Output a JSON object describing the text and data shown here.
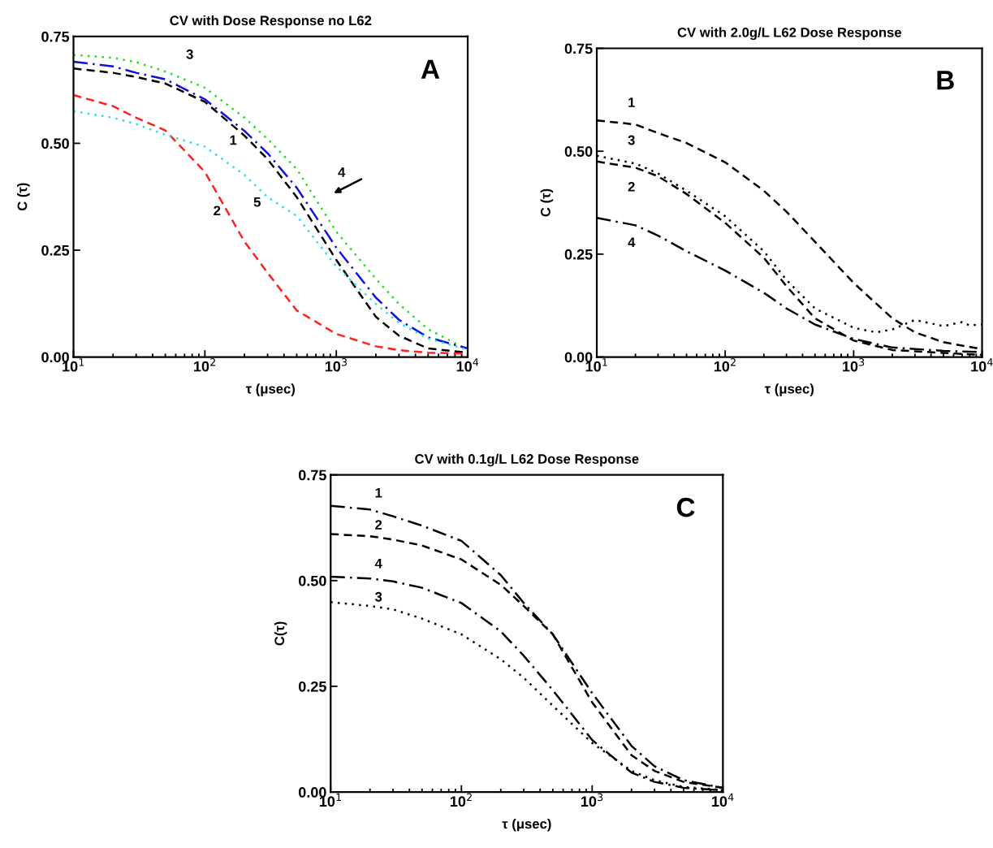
{
  "chart_data": [
    {
      "type": "line",
      "title": "CV with Dose Response no L62",
      "xlabel": "τ (μsec)",
      "ylabel": "C (τ)",
      "log": "x",
      "grid": false,
      "x": [
        10,
        20,
        30,
        50,
        100,
        200,
        300,
        500,
        1000,
        2000,
        3000,
        5000,
        10000
      ],
      "xlim": [
        10,
        10000
      ],
      "xticks": [
        {
          "value": 10,
          "label": "10$^{1}$"
        },
        {
          "value": 100,
          "label": "10$^{2}$"
        },
        {
          "value": 1000,
          "label": "10$^{3}$"
        },
        {
          "value": 10000,
          "label": "10$^{4}$"
        }
      ],
      "ylim": [
        0,
        0.75
      ],
      "yticks": [
        {
          "value": 0,
          "label": "0.00"
        },
        {
          "value": 0.25,
          "label": "0.25"
        },
        {
          "value": 0.5,
          "label": "0.50"
        },
        {
          "value": 0.75,
          "label": "0.75"
        }
      ],
      "series": [
        {
          "color": "#000000",
          "line_style": "dashed",
          "values": [
            0.675,
            0.665,
            0.655,
            0.64,
            0.597,
            0.518,
            0.463,
            0.374,
            0.227,
            0.094,
            0.05,
            0.02,
            0.01
          ]
        },
        {
          "color": "#ff2020",
          "line_style": "dashed",
          "values": [
            0.613,
            0.587,
            0.56,
            0.53,
            0.433,
            0.27,
            0.197,
            0.109,
            0.054,
            0.025,
            0.016,
            0.01,
            0.008
          ]
        },
        {
          "color": "#22dd22",
          "line_style": "dotted",
          "values": [
            0.707,
            0.7,
            0.69,
            0.668,
            0.63,
            0.56,
            0.51,
            0.44,
            0.293,
            0.183,
            0.124,
            0.065,
            0.017
          ]
        },
        {
          "color": "#1010dd",
          "line_style": "dashdot",
          "values": [
            0.691,
            0.68,
            0.665,
            0.65,
            0.603,
            0.529,
            0.477,
            0.396,
            0.256,
            0.139,
            0.087,
            0.046,
            0.02
          ]
        },
        {
          "color": "#22e0f0",
          "line_style": "dotted",
          "values": [
            0.575,
            0.56,
            0.545,
            0.52,
            0.492,
            0.426,
            0.374,
            0.33,
            0.212,
            0.124,
            0.08,
            0.043,
            0.017
          ]
        }
      ],
      "annotations": [
        "A",
        "3",
        "1",
        "4",
        "2",
        "5"
      ]
    },
    {
      "type": "line",
      "title": "CV with 2.0g/L L62 Dose Response",
      "xlabel": "τ (μsec)",
      "ylabel": "C (τ)",
      "log": "x",
      "grid": false,
      "xlim": [
        10,
        10000
      ],
      "xticks": [
        {
          "value": 10,
          "label": "10$^{1}$"
        },
        {
          "value": 100,
          "label": "10$^{2}$"
        },
        {
          "value": 1000,
          "label": "10$^{3}$"
        },
        {
          "value": 10000,
          "label": "10$^{4}$"
        }
      ],
      "ylim": [
        0,
        0.75
      ],
      "yticks": [
        {
          "value": 0,
          "label": "0.00"
        },
        {
          "value": 0.25,
          "label": "0.25"
        },
        {
          "value": 0.5,
          "label": "0.50"
        },
        {
          "value": 0.75,
          "label": "0.75"
        }
      ],
      "series": [
        {
          "color": "#000000",
          "line_style": "dashed",
          "x": [
            10,
            20,
            30,
            50,
            100,
            200,
            300,
            500,
            1000,
            2000,
            3000,
            5000,
            10000
          ],
          "values": [
            0.575,
            0.565,
            0.544,
            0.52,
            0.473,
            0.404,
            0.353,
            0.28,
            0.18,
            0.094,
            0.06,
            0.036,
            0.019
          ]
        },
        {
          "color": "#000000",
          "line_style": "dotted",
          "x": [
            10,
            20,
            30,
            50,
            100,
            200,
            300,
            500,
            1000,
            1500,
            2000,
            3000,
            5000,
            7000,
            8000,
            10000
          ],
          "values": [
            0.489,
            0.47,
            0.446,
            0.404,
            0.342,
            0.257,
            0.187,
            0.118,
            0.071,
            0.06,
            0.067,
            0.09,
            0.075,
            0.085,
            0.077,
            0.079
          ]
        },
        {
          "color": "#000000",
          "line_style": "dashed",
          "x": [
            10,
            20,
            30,
            50,
            100,
            200,
            300,
            500,
            1000,
            2000,
            5000,
            10000
          ],
          "values": [
            0.475,
            0.46,
            0.439,
            0.396,
            0.326,
            0.241,
            0.172,
            0.094,
            0.04,
            0.017,
            0.01,
            0.005
          ]
        },
        {
          "color": "#000000",
          "line_style": "dashdot",
          "x": [
            10,
            20,
            30,
            50,
            100,
            200,
            300,
            500,
            1000,
            2000,
            5000,
            10000
          ],
          "values": [
            0.338,
            0.32,
            0.295,
            0.257,
            0.21,
            0.156,
            0.118,
            0.079,
            0.044,
            0.023,
            0.015,
            0.012
          ]
        }
      ],
      "annotations": [
        "B",
        "1",
        "3",
        "2",
        "4"
      ]
    },
    {
      "type": "line",
      "title": "CV with 0.1g/L L62 Dose Response",
      "xlabel": "τ (μsec)",
      "ylabel": "C(τ)",
      "log": "x",
      "grid": false,
      "x": [
        10,
        20,
        30,
        50,
        100,
        200,
        300,
        500,
        1000,
        2000,
        3000,
        5000,
        10000
      ],
      "xlim": [
        10,
        10000
      ],
      "xticks": [
        {
          "value": 10,
          "label": "10$^{1}$"
        },
        {
          "value": 100,
          "label": "10$^{2}$"
        },
        {
          "value": 1000,
          "label": "10$^{3}$"
        },
        {
          "value": 10000,
          "label": "10$^{4}$"
        }
      ],
      "ylim": [
        0,
        0.75
      ],
      "yticks": [
        {
          "value": 0,
          "label": "0.00"
        },
        {
          "value": 0.25,
          "label": "0.25"
        },
        {
          "value": 0.5,
          "label": "0.50"
        },
        {
          "value": 0.75,
          "label": "0.75"
        }
      ],
      "series": [
        {
          "color": "#000000",
          "line_style": "dashdot",
          "values": [
            0.677,
            0.668,
            0.652,
            0.63,
            0.594,
            0.513,
            0.447,
            0.373,
            0.234,
            0.109,
            0.061,
            0.028,
            0.01
          ]
        },
        {
          "color": "#000000",
          "line_style": "dashed",
          "values": [
            0.61,
            0.605,
            0.597,
            0.583,
            0.55,
            0.49,
            0.44,
            0.373,
            0.212,
            0.087,
            0.05,
            0.024,
            0.01
          ]
        },
        {
          "color": "#000000",
          "line_style": "dashdot",
          "values": [
            0.509,
            0.505,
            0.498,
            0.483,
            0.447,
            0.38,
            0.322,
            0.241,
            0.123,
            0.046,
            0.024,
            0.01,
            0.004
          ]
        },
        {
          "color": "#000000",
          "line_style": "dotted",
          "values": [
            0.449,
            0.44,
            0.432,
            0.41,
            0.373,
            0.314,
            0.27,
            0.204,
            0.116,
            0.05,
            0.028,
            0.012,
            0.005
          ]
        }
      ],
      "annotations": [
        "C",
        "1",
        "2",
        "4",
        "3"
      ]
    }
  ]
}
